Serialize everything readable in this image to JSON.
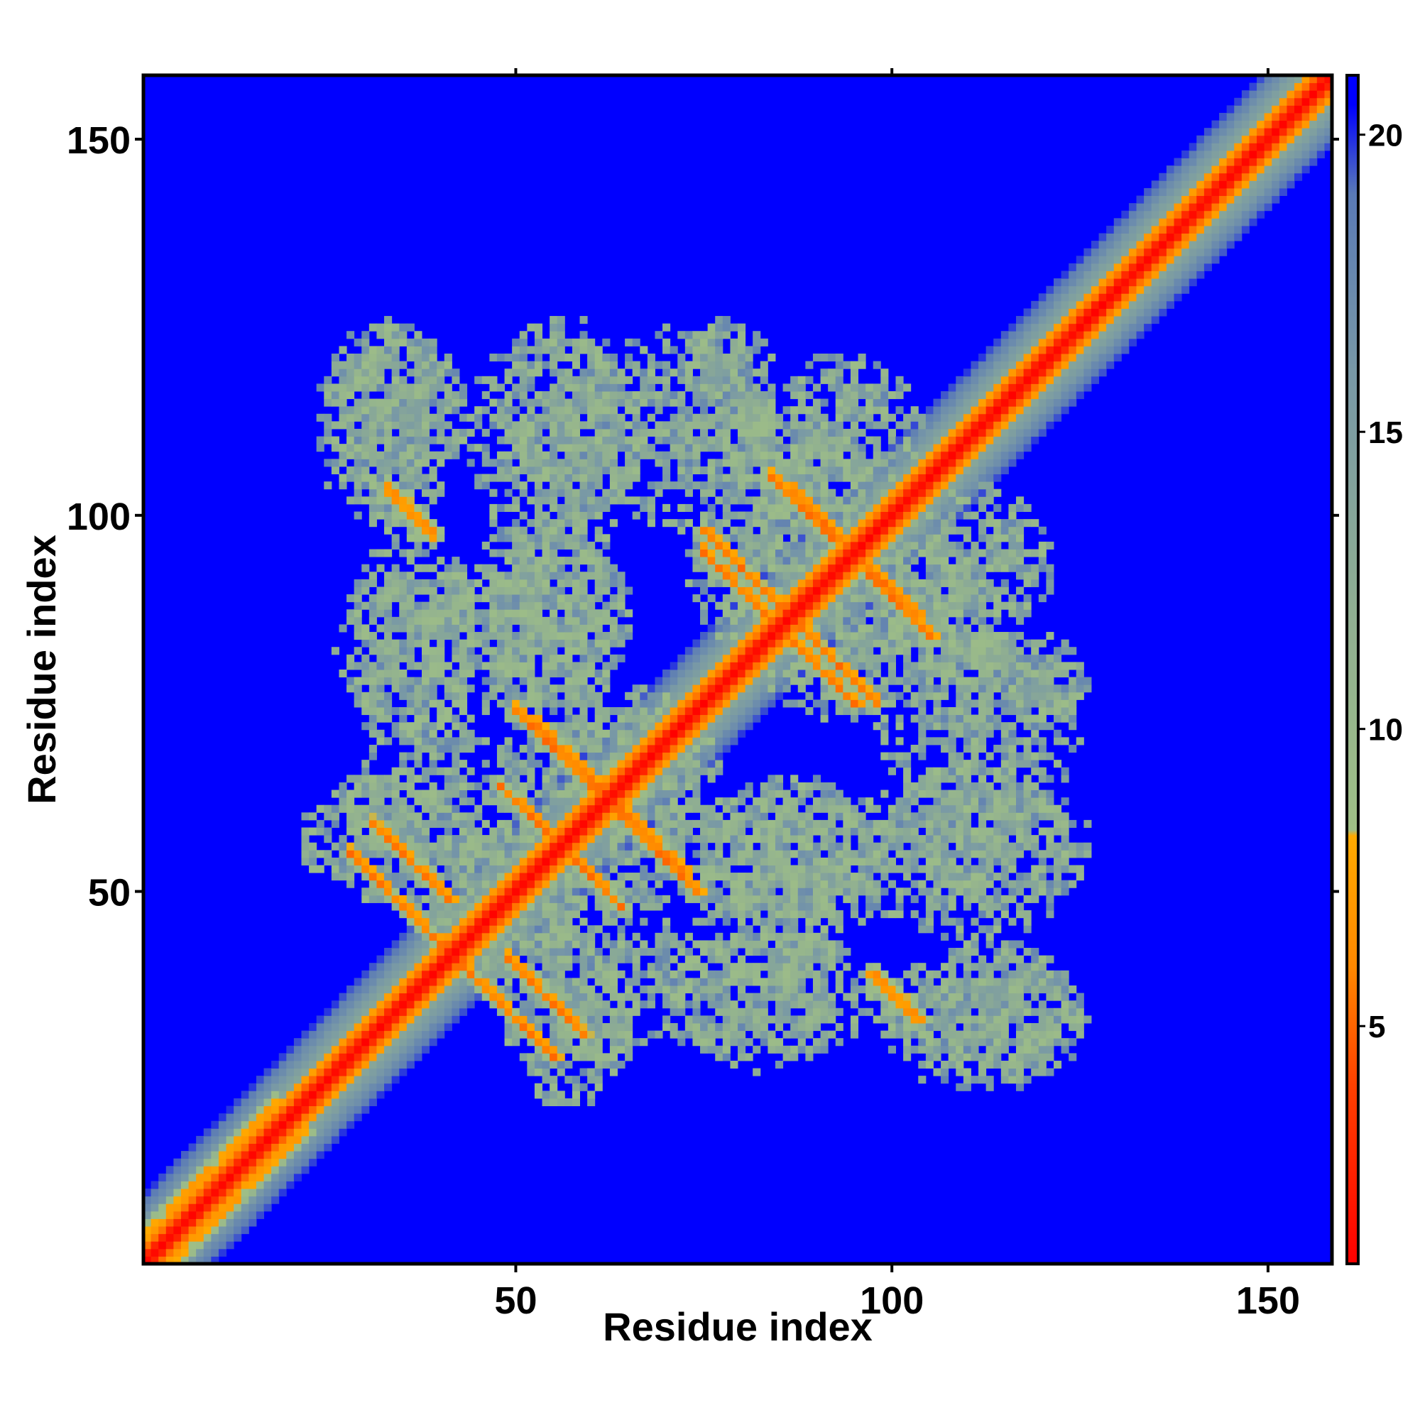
{
  "chart_data": {
    "type": "heatmap",
    "title": "",
    "xlabel": "Residue index",
    "ylabel": "Residue index",
    "xlim": [
      1,
      158
    ],
    "ylim": [
      1,
      158
    ],
    "n_residues": 158,
    "x_ticks": [
      50,
      100,
      150
    ],
    "y_ticks": [
      50,
      100,
      150
    ],
    "x_tick_labels": [
      "50",
      "100",
      "150"
    ],
    "y_tick_labels": [
      "50",
      "100",
      "150"
    ],
    "grid": false,
    "colorbar": {
      "range": [
        1,
        21
      ],
      "ticks": [
        5,
        10,
        15,
        20
      ],
      "tick_labels": [
        "5",
        "10",
        "15",
        "20"
      ],
      "stops": [
        {
          "value": 1,
          "color": "#ff0000"
        },
        {
          "value": 4,
          "color": "#ff4000"
        },
        {
          "value": 6,
          "color": "#ff8800"
        },
        {
          "value": 8.2,
          "color": "#ffaa00"
        },
        {
          "value": 8.3,
          "color": "#9fbf86"
        },
        {
          "value": 12,
          "color": "#8fae92"
        },
        {
          "value": 16,
          "color": "#7898a6"
        },
        {
          "value": 19,
          "color": "#5a7ab6"
        },
        {
          "value": 20.5,
          "color": "#0000ff"
        }
      ],
      "background_color": "#0000ff"
    },
    "contact_structures": [
      {
        "kind": "diagonal",
        "from": 1,
        "to": 158,
        "value": 1
      },
      {
        "kind": "antiparallel",
        "center": [
          36,
          54
        ],
        "half_length": 5,
        "value": 5
      },
      {
        "kind": "antiparallel",
        "center": [
          49,
          34
        ],
        "half_length": 6,
        "value": 5
      },
      {
        "kind": "antiparallel",
        "center": [
          36,
          100
        ],
        "half_length": 3,
        "value": 6
      },
      {
        "kind": "antiparallel",
        "center": [
          56,
          68
        ],
        "half_length": 6,
        "value": 5
      },
      {
        "kind": "antiparallel",
        "center": [
          58,
          54
        ],
        "half_length": 6,
        "value": 5
      },
      {
        "kind": "antiparallel",
        "center": [
          66,
          59
        ],
        "half_length": 6,
        "value": 5
      },
      {
        "kind": "antiparallel",
        "center": [
          80,
          93
        ],
        "half_length": 5,
        "value": 5
      },
      {
        "kind": "antiparallel",
        "center": [
          88,
          101
        ],
        "half_length": 4,
        "value": 5
      },
      {
        "kind": "antiparallel",
        "center": [
          89,
          81
        ],
        "half_length": 6,
        "value": 5
      },
      {
        "kind": "antiparallel",
        "center": [
          98,
          92
        ],
        "half_length": 5,
        "value": 5
      },
      {
        "kind": "antiparallel",
        "center": [
          101,
          36
        ],
        "half_length": 3,
        "value": 6
      },
      {
        "kind": "parallel",
        "center": [
          73,
          74
        ],
        "half_length": 3,
        "value": 6
      },
      {
        "kind": "parallel",
        "center": [
          140,
          142
        ],
        "half_length": 16,
        "value": 7
      },
      {
        "kind": "parallel",
        "center": [
          8,
          12
        ],
        "half_length": 10,
        "value": 7
      }
    ],
    "contact_regions": [
      {
        "center": [
          34,
          113
        ],
        "spread": [
          10,
          12
        ],
        "density": 0.75
      },
      {
        "center": [
          55,
          110
        ],
        "spread": [
          12,
          15
        ],
        "density": 0.72
      },
      {
        "center": [
          72,
          112
        ],
        "spread": [
          12,
          14
        ],
        "density": 0.72
      },
      {
        "center": [
          93,
          110
        ],
        "spread": [
          12,
          12
        ],
        "density": 0.75
      },
      {
        "center": [
          103,
          88
        ],
        "spread": [
          12,
          10
        ],
        "density": 0.8
      },
      {
        "center": [
          115,
          78
        ],
        "spread": [
          12,
          7
        ],
        "density": 0.75
      },
      {
        "center": [
          40,
          82
        ],
        "spread": [
          14,
          12
        ],
        "density": 0.7
      },
      {
        "center": [
          55,
          86
        ],
        "spread": [
          10,
          12
        ],
        "density": 0.7
      },
      {
        "center": [
          33,
          57
        ],
        "spread": [
          12,
          9
        ],
        "density": 0.75
      },
      {
        "center": [
          62,
          40
        ],
        "spread": [
          10,
          13
        ],
        "density": 0.7
      },
      {
        "center": [
          88,
          55
        ],
        "spread": [
          14,
          11
        ],
        "density": 0.7
      },
      {
        "center": [
          112,
          56
        ],
        "spread": [
          15,
          9
        ],
        "density": 0.72
      },
      {
        "center": [
          83,
          36
        ],
        "spread": [
          15,
          9
        ],
        "density": 0.72
      },
      {
        "center": [
          112,
          33
        ],
        "spread": [
          14,
          10
        ],
        "density": 0.72
      },
      {
        "center": [
          62,
          68
        ],
        "spread": [
          14,
          10
        ],
        "density": 0.75
      },
      {
        "center": [
          92,
          84
        ],
        "spread": [
          10,
          12
        ],
        "density": 0.75
      },
      {
        "center": [
          48,
          48
        ],
        "spread": [
          12,
          12
        ],
        "density": 0.7
      }
    ]
  }
}
